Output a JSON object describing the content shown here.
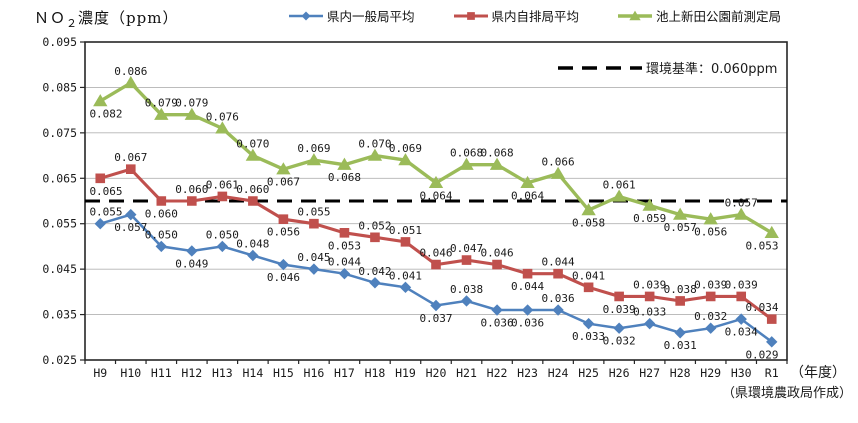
{
  "header": {
    "title_prefix": "ＮＯ",
    "title_sub": "２",
    "title_suffix": "濃度（ppm）"
  },
  "legend": {
    "items": [
      {
        "label": "県内一般局平均",
        "color": "#4F81BD",
        "marker": "diamond"
      },
      {
        "label": "県内自排局平均",
        "color": "#C0504D",
        "marker": "square"
      },
      {
        "label": "池上新田公園前測定局",
        "color": "#9BBB59",
        "marker": "triangle"
      }
    ]
  },
  "chart_data": {
    "type": "line",
    "title": "ＮＯ２濃度（ppm）",
    "ylabel": "ＮＯ２濃度（ppm）",
    "xlabel": "年度",
    "xaxis_suffix": "（年度）",
    "grid": true,
    "legend_position": "top",
    "ylim": [
      0.025,
      0.095
    ],
    "ytick_step": 0.01,
    "yticks": [
      "0.095",
      "0.085",
      "0.075",
      "0.065",
      "0.055",
      "0.045",
      "0.035",
      "0.025"
    ],
    "categories": [
      "H9",
      "H10",
      "H11",
      "H12",
      "H13",
      "H14",
      "H15",
      "H16",
      "H17",
      "H18",
      "H19",
      "H20",
      "H21",
      "H22",
      "H23",
      "H24",
      "H25",
      "H26",
      "H27",
      "H28",
      "H29",
      "H30",
      "R1"
    ],
    "series": [
      {
        "id": "general-stations-average",
        "name": "県内一般局平均",
        "color": "#4F81BD",
        "marker": "diamond",
        "values": [
          0.055,
          0.057,
          0.05,
          0.049,
          0.05,
          0.048,
          0.046,
          0.045,
          0.044,
          0.042,
          0.041,
          0.037,
          0.038,
          0.036,
          0.036,
          0.036,
          0.033,
          0.032,
          0.033,
          0.031,
          0.032,
          0.034,
          0.029
        ],
        "label_side": [
          "above",
          "below",
          "above",
          "below",
          "above",
          "above",
          "below",
          "above",
          "above",
          "above",
          "above",
          "below",
          "above",
          "below",
          "below",
          "above",
          "below",
          "below",
          "above",
          "below",
          "above",
          "below",
          "below"
        ]
      },
      {
        "id": "roadside-stations-average",
        "name": "県内自排局平均",
        "color": "#C0504D",
        "marker": "square",
        "values": [
          0.065,
          0.067,
          0.06,
          0.06,
          0.061,
          0.06,
          0.056,
          0.055,
          0.053,
          0.052,
          0.051,
          0.046,
          0.047,
          0.046,
          0.044,
          0.044,
          0.041,
          0.039,
          0.039,
          0.038,
          0.039,
          0.039,
          0.034
        ],
        "label_side": [
          "below",
          "above",
          "below",
          "above",
          "above",
          "above",
          "below",
          "above",
          "below",
          "above",
          "above",
          "above",
          "above",
          "above",
          "below",
          "above",
          "above",
          "below",
          "above",
          "above",
          "above",
          "above",
          "above"
        ]
      },
      {
        "id": "ikegami-shinden-park-station",
        "name": "池上新田公園前測定局",
        "color": "#9BBB59",
        "marker": "triangle",
        "values": [
          0.082,
          0.086,
          0.079,
          0.079,
          0.076,
          0.07,
          0.067,
          0.069,
          0.068,
          0.07,
          0.069,
          0.064,
          0.068,
          0.068,
          0.064,
          0.066,
          0.058,
          0.061,
          0.059,
          0.057,
          0.056,
          0.057,
          0.053
        ],
        "label_side": [
          "below",
          "above",
          "above",
          "above",
          "above",
          "above",
          "below",
          "above",
          "below",
          "above",
          "above",
          "below",
          "above",
          "above",
          "below",
          "above",
          "below",
          "above",
          "below",
          "below",
          "below",
          "above",
          "below"
        ]
      }
    ],
    "reference_line": {
      "value": 0.06,
      "label": "環境基準：0.060ppm",
      "style": "dashed",
      "color": "#000000"
    }
  },
  "footer": {
    "note": "（県環境農政局作成）"
  }
}
